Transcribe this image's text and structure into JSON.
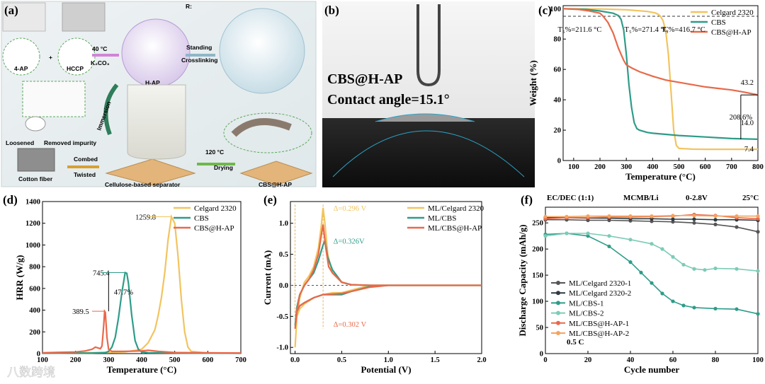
{
  "panels": {
    "a": {
      "label": "(a)",
      "text": {
        "r_label": "R:",
        "reagent_4ap": "4-AP",
        "reagent_hccp": "HCCP",
        "condition_temp": "40 °C",
        "condition_base": "K₂CO₃",
        "product_hap": "H-AP",
        "step_standing": "Standing",
        "step_crosslinking": "Crosslinking",
        "step_loosened": "Loosened",
        "step_removed": "Removed impurity",
        "step_immersion": "Immersion",
        "step_combed": "Combed",
        "step_twisted": "Twisted",
        "label_cotton": "Cotton fiber",
        "label_separator": "Cellulose-based separator",
        "drying_temp": "120 °C",
        "drying": "Drying",
        "product_cbs": "CBS@H-AP"
      }
    },
    "b": {
      "label": "(b)",
      "title": "CBS@H-AP",
      "subtitle": "Contact angle=15.1°"
    },
    "watermark": "八数跨境"
  },
  "colors": {
    "celgard": "#F2C45F",
    "cbs": "#2E9C88",
    "cbs_hap": "#E8694A",
    "cbs2": "#7DCBB7",
    "celgard1": "#555555",
    "celgard2": "#2F3B40",
    "cbshap2": "#F4A460"
  },
  "chart_data": [
    {
      "id": "c",
      "label": "(c)",
      "type": "line",
      "xlabel": "Temperature (°C)",
      "ylabel": "Weight (%)",
      "xlim": [
        60,
        800
      ],
      "ylim": [
        0,
        102
      ],
      "xticks": [
        100,
        200,
        300,
        400,
        500,
        600,
        700,
        800
      ],
      "yticks": [
        0,
        20,
        40,
        60,
        80,
        100
      ],
      "legend_position": "top-right",
      "series": [
        {
          "name": "Celgard 2320",
          "color_key": "celgard",
          "x": [
            60,
            200,
            300,
            380,
            410,
            420,
            430,
            440,
            450,
            460,
            470,
            480,
            490,
            500,
            550,
            600,
            700,
            800
          ],
          "y": [
            100,
            99.8,
            99.3,
            98.2,
            97.2,
            96.4,
            95,
            92,
            85,
            70,
            45,
            20,
            10,
            8,
            7.5,
            7.4,
            7.4,
            7.4
          ]
        },
        {
          "name": "CBS",
          "color_key": "cbs",
          "x": [
            60,
            150,
            200,
            250,
            270,
            280,
            290,
            300,
            310,
            320,
            330,
            340,
            350,
            380,
            400,
            500,
            600,
            700,
            800
          ],
          "y": [
            100,
            99.5,
            98.5,
            97,
            95.5,
            93,
            86,
            70,
            50,
            35,
            25,
            21,
            20,
            18.5,
            18,
            16.5,
            15.5,
            14.5,
            14
          ]
        },
        {
          "name": "CBS@H-AP",
          "color_key": "cbs_hap",
          "x": [
            60,
            120,
            160,
            200,
            212,
            230,
            250,
            270,
            290,
            300,
            320,
            350,
            400,
            450,
            500,
            600,
            700,
            750,
            800
          ],
          "y": [
            100,
            99.5,
            98.5,
            97,
            95,
            91,
            84,
            74,
            66,
            63,
            61,
            58.5,
            55.5,
            53,
            51.5,
            48.5,
            46.5,
            45,
            43.2
          ]
        }
      ],
      "reference_line": {
        "y": 95
      },
      "annotations": [
        {
          "text": "T₅%=211.6 °C",
          "x": 211.6,
          "y": 95
        },
        {
          "text": "T₅%=271.4 °C",
          "x": 271.4,
          "y": 95
        },
        {
          "text": "T₅%=416.7 °C",
          "x": 416.7,
          "y": 95
        },
        {
          "text": "43.2",
          "x": 800,
          "y": 43.2
        },
        {
          "text": "14.0",
          "x": 800,
          "y": 14
        },
        {
          "text": "7.4",
          "x": 800,
          "y": 7.4
        },
        {
          "text": "208.6%",
          "x": 735,
          "y": 27
        }
      ]
    },
    {
      "id": "d",
      "label": "(d)",
      "type": "line",
      "xlabel": "Temperature (°C)",
      "ylabel": "HRR (W/g)",
      "xlim": [
        100,
        700
      ],
      "ylim": [
        0,
        1400
      ],
      "xticks": [
        100,
        200,
        300,
        400,
        500,
        600,
        700
      ],
      "yticks": [
        0,
        200,
        400,
        600,
        800,
        1000,
        1200,
        1400
      ],
      "legend_position": "top-right",
      "series": [
        {
          "name": "Celgard 2320",
          "color_key": "celgard",
          "x": [
            100,
            200,
            300,
            350,
            400,
            420,
            440,
            450,
            460,
            470,
            480,
            490,
            500,
            510,
            520,
            530,
            540,
            550,
            600,
            700
          ],
          "y": [
            5,
            8,
            10,
            15,
            40,
            100,
            220,
            350,
            520,
            750,
            1050,
            1259.8,
            1200,
            900,
            500,
            200,
            60,
            20,
            5,
            3
          ]
        },
        {
          "name": "CBS",
          "color_key": "cbs",
          "x": [
            100,
            250,
            290,
            300,
            310,
            320,
            330,
            340,
            350,
            355,
            360,
            370,
            380,
            390,
            400,
            420,
            500,
            700
          ],
          "y": [
            3,
            5,
            10,
            20,
            60,
            150,
            330,
            560,
            745.4,
            740,
            650,
            350,
            120,
            40,
            15,
            8,
            5,
            3
          ]
        },
        {
          "name": "CBS@H-AP",
          "color_key": "cbs_hap",
          "x": [
            100,
            150,
            200,
            230,
            250,
            260,
            270,
            275,
            280,
            285,
            288,
            290,
            295,
            300,
            310,
            350,
            400,
            420,
            450,
            500,
            700
          ],
          "y": [
            8,
            12,
            15,
            25,
            40,
            60,
            50,
            45,
            70,
            250,
            389.5,
            380,
            150,
            40,
            20,
            20,
            25,
            30,
            20,
            10,
            5
          ]
        }
      ],
      "annotations": [
        {
          "text": "1259.8",
          "x": 490,
          "y": 1259.8
        },
        {
          "text": "745.4",
          "x": 350,
          "y": 745.4
        },
        {
          "text": "389.5",
          "x": 288,
          "y": 389.5
        },
        {
          "text": "47.7%",
          "x": 310,
          "y": 570
        }
      ]
    },
    {
      "id": "e",
      "label": "(e)",
      "type": "line",
      "xlabel": "Potential (V)",
      "ylabel": "Current (mA)",
      "xlim": [
        -0.05,
        2.0
      ],
      "ylim": [
        -1.1,
        1.35
      ],
      "xticks": [
        0.0,
        0.5,
        1.0,
        1.5,
        2.0
      ],
      "yticks": [
        -1.0,
        -0.5,
        0.0,
        0.5,
        1.0
      ],
      "legend_position": "top-right",
      "series": [
        {
          "name": "ML/Celgard 2320",
          "color_key": "celgard",
          "x": [
            0.0,
            0.02,
            0.05,
            0.1,
            0.15,
            0.2,
            0.25,
            0.28,
            0.3,
            0.32,
            0.35,
            0.4,
            0.5,
            0.6,
            0.8,
            1.0,
            1.5,
            2.0,
            1.5,
            1.0,
            0.8,
            0.6,
            0.5,
            0.4,
            0.3,
            0.2,
            0.1,
            0.05,
            0.02,
            0.0
          ],
          "y": [
            -1.0,
            -0.5,
            -0.2,
            0.05,
            0.15,
            0.3,
            0.6,
            0.95,
            1.25,
            1.0,
            0.5,
            0.2,
            0.05,
            0.01,
            0.0,
            0.0,
            0.0,
            0.0,
            0.0,
            0.0,
            0.0,
            -0.08,
            -0.12,
            -0.12,
            -0.15,
            -0.2,
            -0.3,
            -0.38,
            -0.5,
            -1.0
          ]
        },
        {
          "name": "ML/CBS",
          "color_key": "cbs",
          "x": [
            0.0,
            0.02,
            0.05,
            0.1,
            0.15,
            0.2,
            0.25,
            0.3,
            0.32,
            0.35,
            0.4,
            0.5,
            0.6,
            0.8,
            1.0,
            1.5,
            2.0,
            1.5,
            1.0,
            0.8,
            0.6,
            0.5,
            0.4,
            0.3,
            0.2,
            0.1,
            0.05,
            0.02,
            0.0
          ],
          "y": [
            -0.65,
            -0.35,
            -0.15,
            0.0,
            0.1,
            0.2,
            0.4,
            0.65,
            0.72,
            0.45,
            0.25,
            0.05,
            0.01,
            0.0,
            0.0,
            0.0,
            0.0,
            0.0,
            0.0,
            -0.02,
            -0.1,
            -0.15,
            -0.15,
            -0.15,
            -0.2,
            -0.28,
            -0.33,
            -0.42,
            -0.65
          ]
        },
        {
          "name": "ML/CBS@H-AP",
          "color_key": "cbs_hap",
          "x": [
            0.0,
            0.02,
            0.05,
            0.1,
            0.15,
            0.2,
            0.25,
            0.28,
            0.3,
            0.33,
            0.36,
            0.4,
            0.5,
            0.6,
            0.8,
            1.0,
            1.5,
            2.0,
            1.5,
            1.0,
            0.8,
            0.6,
            0.5,
            0.4,
            0.3,
            0.2,
            0.1,
            0.05,
            0.02,
            0.0
          ],
          "y": [
            -0.7,
            -0.4,
            -0.15,
            0.0,
            0.1,
            0.25,
            0.5,
            0.8,
            0.98,
            0.6,
            0.3,
            0.2,
            0.05,
            0.01,
            0.0,
            0.0,
            0.0,
            0.0,
            0.0,
            0.0,
            -0.03,
            -0.1,
            -0.13,
            -0.14,
            -0.15,
            -0.2,
            -0.28,
            -0.33,
            -0.42,
            -0.7
          ]
        }
      ],
      "annotations": [
        {
          "text": "Δ=0.296 V",
          "x": 0.35,
          "y": 1.25
        },
        {
          "text": "Δ=0.326V",
          "x": 0.35,
          "y": 0.72
        },
        {
          "text": "Δ=0.302 V",
          "x": 0.35,
          "y": -0.62
        }
      ]
    },
    {
      "id": "f",
      "label": "(f)",
      "type": "scatter",
      "xlabel": "Cycle number",
      "ylabel": "Discharge Capacity (mAh/g)",
      "xlim": [
        0,
        100
      ],
      "ylim": [
        0,
        280
      ],
      "xticks": [
        0,
        20,
        40,
        60,
        80,
        100
      ],
      "yticks": [
        0,
        50,
        100,
        150,
        200,
        250
      ],
      "legend_position": "bottom-left",
      "top_text": [
        "EC/DEC (1:1)",
        "MCMB/Li",
        "0-2.8V",
        "25°C"
      ],
      "rate_text": "0.5 C",
      "series": [
        {
          "name": "ML/Celgard 2320-1",
          "color_key": "celgard1",
          "x": [
            0,
            10,
            20,
            30,
            40,
            50,
            60,
            70,
            80,
            90,
            100
          ],
          "y": [
            256,
            256,
            255,
            255,
            254,
            253,
            252,
            250,
            247,
            242,
            233
          ]
        },
        {
          "name": "ML/Celgard 2320-2",
          "color_key": "celgard2",
          "x": [
            0,
            10,
            20,
            30,
            40,
            50,
            60,
            70,
            80,
            90,
            100
          ],
          "y": [
            260,
            260,
            259,
            259,
            258,
            258,
            257,
            257,
            256,
            256,
            255
          ]
        },
        {
          "name": "ML/CBS-1",
          "color_key": "cbs",
          "x": [
            0,
            10,
            20,
            30,
            40,
            45,
            50,
            55,
            60,
            65,
            70,
            80,
            90,
            100
          ],
          "y": [
            228,
            230,
            225,
            205,
            175,
            155,
            135,
            115,
            100,
            92,
            88,
            86,
            85,
            76
          ]
        },
        {
          "name": "ML/CBS-2",
          "color_key": "cbs2",
          "x": [
            0,
            10,
            20,
            30,
            40,
            50,
            55,
            60,
            65,
            70,
            75,
            80,
            90,
            100
          ],
          "y": [
            225,
            230,
            230,
            225,
            218,
            210,
            200,
            185,
            170,
            162,
            160,
            163,
            162,
            158
          ]
        },
        {
          "name": "ML/CBS@H-AP-1",
          "color_key": "cbs_hap",
          "x": [
            0,
            10,
            20,
            30,
            40,
            50,
            60,
            70,
            80,
            90,
            100
          ],
          "y": [
            258,
            260,
            260,
            261,
            261,
            262,
            263,
            266,
            264,
            260,
            258
          ]
        },
        {
          "name": "ML/CBS@H-AP-2",
          "color_key": "cbshap2",
          "x": [
            0,
            10,
            20,
            30,
            40,
            50,
            60,
            70,
            80,
            90,
            100
          ],
          "y": [
            262,
            262,
            263,
            263,
            263,
            263,
            264,
            264,
            263,
            263,
            263
          ]
        }
      ]
    }
  ]
}
